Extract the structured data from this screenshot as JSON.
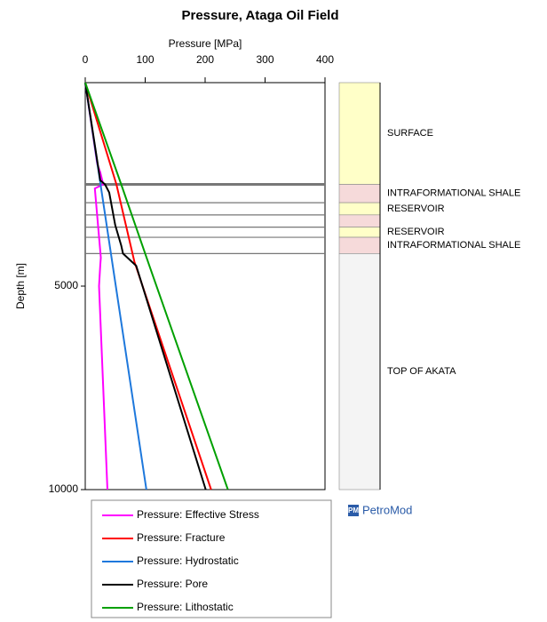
{
  "chart_data": {
    "type": "line",
    "title": "Pressure, Ataga Oil Field",
    "x_label": "Pressure [MPa]",
    "y_label": "Depth [m]",
    "xlim": [
      0,
      400
    ],
    "xticks": [
      0,
      100,
      200,
      300,
      400
    ],
    "ylim": [
      0,
      10000
    ],
    "yticks": [
      5000,
      10000
    ],
    "y_inverted": true,
    "series": [
      {
        "name": "Pressure: Effective Stress",
        "color": "#ff00ff",
        "depth": [
          0,
          2000,
          2200,
          2500,
          2600,
          4300,
          4500,
          5000,
          10000
        ],
        "values": [
          0,
          20,
          25,
          30,
          16,
          26,
          25,
          23,
          37
        ]
      },
      {
        "name": "Pressure: Fracture",
        "color": "#ff0000",
        "depth": [
          0,
          2500,
          4400,
          10000
        ],
        "values": [
          0,
          52,
          82,
          210
        ]
      },
      {
        "name": "Pressure: Hydrostatic",
        "color": "#1e78dc",
        "depth": [
          0,
          10000
        ],
        "values": [
          0,
          102
        ]
      },
      {
        "name": "Pressure: Pore",
        "color": "#000000",
        "depth": [
          0,
          2400,
          2500,
          2700,
          3500,
          4000,
          4200,
          4500,
          10000
        ],
        "values": [
          0,
          25,
          33,
          40,
          50,
          60,
          63,
          85,
          201
        ]
      },
      {
        "name": "Pressure: Lithostatic",
        "color": "#00a000",
        "depth": [
          0,
          2500,
          4500,
          10000
        ],
        "values": [
          0,
          60,
          107,
          238
        ]
      }
    ],
    "layers": [
      {
        "name": "SURFACE",
        "top": 0,
        "bottom": 2500,
        "color": "#ffffc8"
      },
      {
        "name": "INTRAFORMATIONAL SHALE",
        "top": 2500,
        "bottom": 2950,
        "color": "#f6dada"
      },
      {
        "name": "RESERVOIR",
        "top": 2950,
        "bottom": 3250,
        "color": "#ffffc8"
      },
      {
        "name": null,
        "top": 3250,
        "bottom": 3550,
        "color": "#f6dada"
      },
      {
        "name": "RESERVOIR",
        "top": 3550,
        "bottom": 3800,
        "color": "#ffffc8"
      },
      {
        "name": "INTRAFORMATIONAL SHALE",
        "top": 3800,
        "bottom": 4200,
        "color": "#f6dada"
      },
      {
        "name": "TOP OF AKATA",
        "top": 4200,
        "bottom": 10000,
        "color": "#f4f4f4"
      }
    ],
    "logo_icon": "PM",
    "logo": "PetroMod"
  }
}
